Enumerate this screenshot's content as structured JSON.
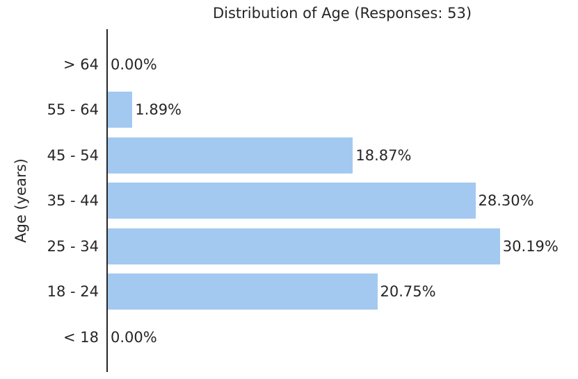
{
  "chart_data": {
    "type": "bar",
    "orientation": "horizontal",
    "title": "Distribution of Age (Responses: 53)",
    "xlabel": "",
    "ylabel": "Age (years)",
    "responses_total": 53,
    "categories": [
      "> 64",
      "55 - 64",
      "45 - 54",
      "35 - 44",
      "25 - 34",
      "18 - 24",
      "< 18"
    ],
    "values": [
      0.0,
      1.89,
      18.87,
      28.3,
      30.19,
      20.75,
      0.0
    ],
    "labels": [
      "0.00%",
      "1.89%",
      "18.87%",
      "28.30%",
      "30.19%",
      "20.75%",
      "0.00%"
    ],
    "categories_order_note": "listed top to bottom as displayed",
    "xlim": [
      0,
      36.2
    ],
    "grid": false,
    "legend": "none",
    "bar_color": "#a3c9f1",
    "axis_color": "#262626",
    "text_color": "#262626",
    "background_color": "#ffffff"
  }
}
